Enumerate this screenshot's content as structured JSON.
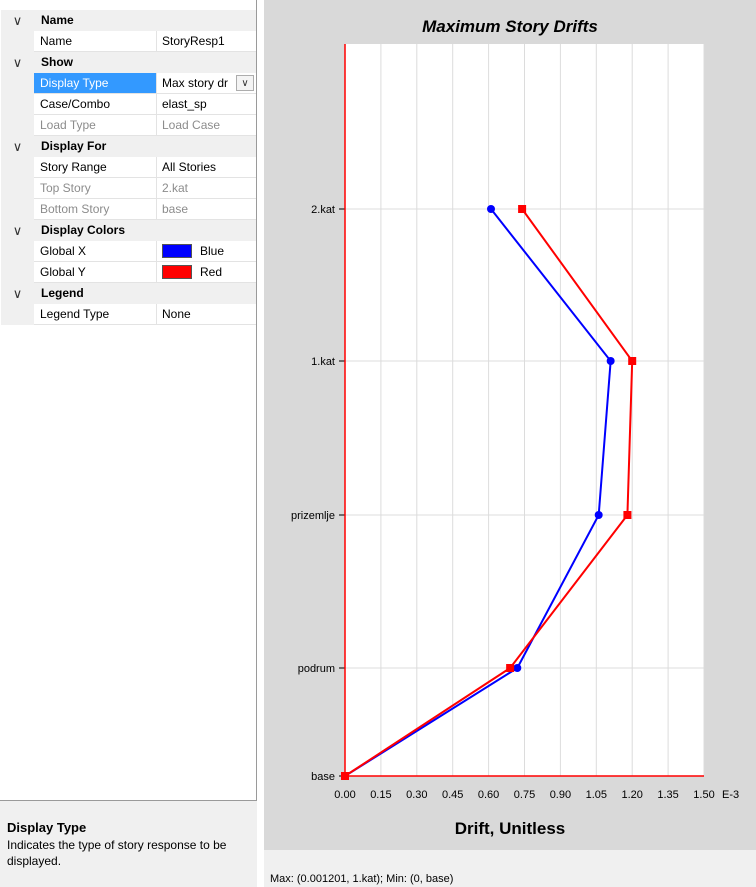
{
  "property_grid": {
    "sections": [
      {
        "title": "Name",
        "rows": [
          {
            "label": "Name",
            "value": "StoryResp1"
          }
        ]
      },
      {
        "title": "Show",
        "rows": [
          {
            "label": "Display Type",
            "value": "Max story dr",
            "selected": true,
            "dropdown": true
          },
          {
            "label": "Case/Combo",
            "value": "elast_sp"
          },
          {
            "label": "Load Type",
            "value": "Load Case",
            "disabled": true
          }
        ]
      },
      {
        "title": "Display For",
        "rows": [
          {
            "label": "Story Range",
            "value": "All Stories"
          },
          {
            "label": "Top Story",
            "value": "2.kat",
            "disabled": true
          },
          {
            "label": "Bottom Story",
            "value": "base",
            "disabled": true
          }
        ]
      },
      {
        "title": "Display Colors",
        "rows": [
          {
            "label": "Global X",
            "value": "Blue",
            "swatch": "#0000ff"
          },
          {
            "label": "Global Y",
            "value": "Red",
            "swatch": "#ff0000"
          }
        ]
      },
      {
        "title": "Legend",
        "rows": [
          {
            "label": "Legend Type",
            "value": "None"
          }
        ]
      }
    ],
    "collapse_glyph": "∨"
  },
  "help": {
    "title": "Display Type",
    "text": "Indicates the type of story response to be displayed."
  },
  "status": {
    "text": "Max: (0.001201, 1.kat);  Min: (0, base)"
  },
  "chart_data": {
    "type": "line",
    "title": "Maximum Story Drifts",
    "xlabel": "Drift, Unitless",
    "x_multiplier_label": "E-3",
    "xlim": [
      0,
      1.5
    ],
    "xticks": [
      "0.00",
      "0.15",
      "0.30",
      "0.45",
      "0.60",
      "0.75",
      "0.90",
      "1.05",
      "1.20",
      "1.35",
      "1.50"
    ],
    "categories": [
      "base",
      "podrum",
      "prizemlje",
      "1.kat",
      "2.kat"
    ],
    "grid": true,
    "axis_color": "#ff0000",
    "series": [
      {
        "color": "#0000ff",
        "marker": "circle",
        "values": [
          0,
          0.72,
          1.06,
          1.11,
          0.61
        ]
      },
      {
        "color": "#ff0000",
        "marker": "square",
        "values": [
          0,
          0.69,
          1.18,
          1.2,
          0.74
        ]
      }
    ]
  }
}
